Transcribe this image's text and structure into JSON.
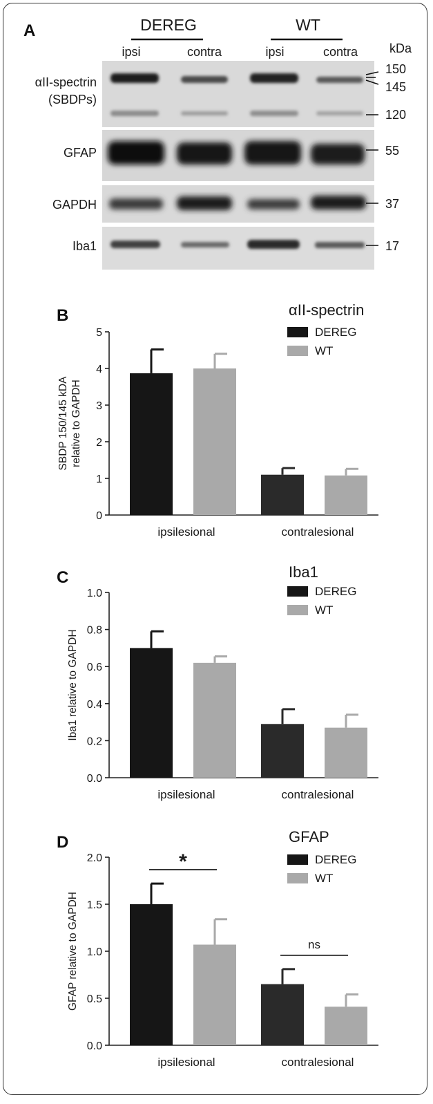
{
  "western_blot": {
    "panel_label": "A",
    "groups": [
      {
        "label": "DEREG",
        "lanes": [
          "ipsi",
          "contra"
        ]
      },
      {
        "label": "WT",
        "lanes": [
          "ipsi",
          "contra"
        ]
      }
    ],
    "kda_label": "kDa",
    "rows": [
      {
        "name_lines": [
          "αII-spectrin",
          "(SBDPs)"
        ],
        "markers": [
          "150",
          "145",
          "120"
        ]
      },
      {
        "name_lines": [
          "GFAP"
        ],
        "markers": [
          "55"
        ]
      },
      {
        "name_lines": [
          "GAPDH"
        ],
        "markers": [
          "37"
        ]
      },
      {
        "name_lines": [
          "Iba1"
        ],
        "markers": [
          "17"
        ]
      }
    ]
  },
  "chart_data": [
    {
      "type": "bar",
      "panel_label": "B",
      "title": "αII-spectrin",
      "categories": [
        "ipsilesional",
        "contralesional"
      ],
      "series": [
        {
          "name": "DEREG",
          "values": [
            3.87,
            1.1
          ],
          "errors": [
            0.65,
            0.18
          ],
          "color": "#161616"
        },
        {
          "name": "WT",
          "values": [
            4.0,
            1.08
          ],
          "errors": [
            0.4,
            0.18
          ],
          "color": "#a9a9a9"
        }
      ],
      "ylabel_lines": [
        "SBDP 150/145 kDA",
        "relative to GAPDH"
      ],
      "ylim": [
        0,
        5
      ],
      "yticks": [
        "0",
        "1",
        "2",
        "3",
        "4",
        "5"
      ],
      "legend": "top-right"
    },
    {
      "type": "bar",
      "panel_label": "C",
      "title": "Iba1",
      "categories": [
        "ipsilesional",
        "contralesional"
      ],
      "series": [
        {
          "name": "DEREG",
          "values": [
            0.7,
            0.29
          ],
          "errors": [
            0.09,
            0.08
          ],
          "color": "#161616"
        },
        {
          "name": "WT",
          "values": [
            0.62,
            0.27
          ],
          "errors": [
            0.035,
            0.07
          ],
          "color": "#a9a9a9"
        }
      ],
      "ylabel_lines": [
        "Iba1 relative to GAPDH"
      ],
      "ylim": [
        0,
        1
      ],
      "yticks": [
        "0.0",
        "0.2",
        "0.4",
        "0.6",
        "0.8",
        "1.0"
      ],
      "legend": "top-right"
    },
    {
      "type": "bar",
      "panel_label": "D",
      "title": "GFAP",
      "categories": [
        "ipsilesional",
        "contralesional"
      ],
      "series": [
        {
          "name": "DEREG",
          "values": [
            1.5,
            0.65
          ],
          "errors": [
            0.22,
            0.16
          ],
          "color": "#161616"
        },
        {
          "name": "WT",
          "values": [
            1.07,
            0.41
          ],
          "errors": [
            0.27,
            0.13
          ],
          "color": "#a9a9a9"
        }
      ],
      "ylabel_lines": [
        "GFAP relative to GAPDH"
      ],
      "ylim": [
        0,
        2
      ],
      "yticks": [
        "0.0",
        "0.5",
        "1.0",
        "1.5",
        "2.0"
      ],
      "legend": "top-right",
      "annotations": [
        {
          "text": "*",
          "category": 0
        },
        {
          "text": "ns",
          "category": 1
        }
      ]
    }
  ]
}
